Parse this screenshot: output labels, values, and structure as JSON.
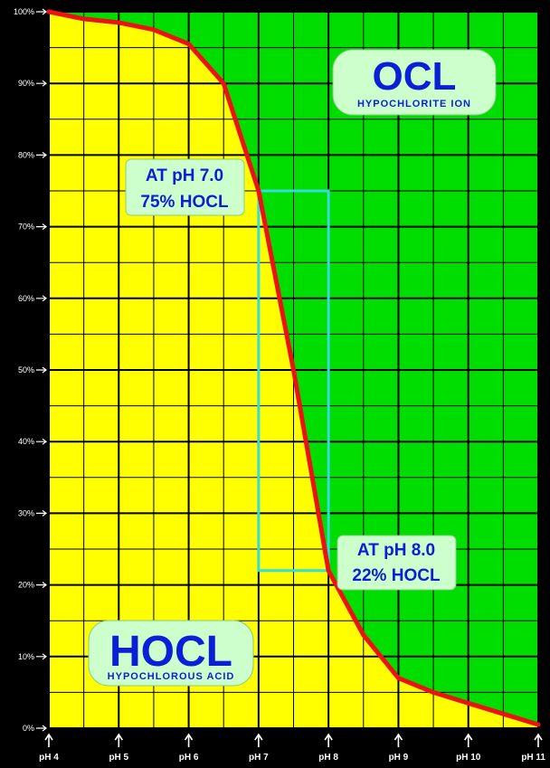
{
  "chart_data": {
    "type": "area",
    "x_label_format": "pH",
    "xlim": [
      4,
      11
    ],
    "ylim": [
      0,
      100
    ],
    "x_ticks": [
      4,
      5,
      6,
      7,
      8,
      9,
      10,
      11
    ],
    "x_tick_labels": [
      "pH 4",
      "pH 5",
      "pH 6",
      "pH 7",
      "pH 8",
      "pH 9",
      "pH 10",
      "pH 11"
    ],
    "y_ticks": [
      0,
      10,
      20,
      30,
      40,
      50,
      60,
      70,
      80,
      90,
      100
    ],
    "y_tick_labels": [
      "0%",
      "10%",
      "20%",
      "30%",
      "40%",
      "50%",
      "60%",
      "70%",
      "80%",
      "90%",
      "100%"
    ],
    "grid": true,
    "series": [
      {
        "x": [
          4,
          4.5,
          5,
          5.5,
          6,
          6.5,
          7,
          7.5,
          8,
          8.5,
          9,
          9.5,
          10,
          10.5,
          11
        ],
        "values": [
          100,
          99,
          98.5,
          97.5,
          95.5,
          90,
          75,
          50,
          22,
          13,
          7,
          5,
          3.5,
          2,
          0.5
        ]
      }
    ],
    "regions": {
      "upper": {
        "label": "OCL",
        "sublabel": "HYPOCHLORITE ION",
        "color": "#00dd00"
      },
      "lower": {
        "label": "HOCL",
        "sublabel": "HYPOCHLOROUS ACID",
        "color": "#ffff00"
      }
    },
    "annotations": [
      {
        "x": 7,
        "y": 75,
        "line1": "AT pH 7.0",
        "line2": "75% HOCL"
      },
      {
        "x": 8,
        "y": 22,
        "line1": "AT pH 8.0",
        "line2": "22% HOCL"
      }
    ],
    "highlight_box": {
      "x": [
        7,
        8
      ],
      "y": [
        22,
        75
      ]
    },
    "colors": {
      "curve": "#ee1111",
      "box": "#33dddd",
      "label_bg": "#ccffcc",
      "text": "#0a1fd6"
    }
  }
}
